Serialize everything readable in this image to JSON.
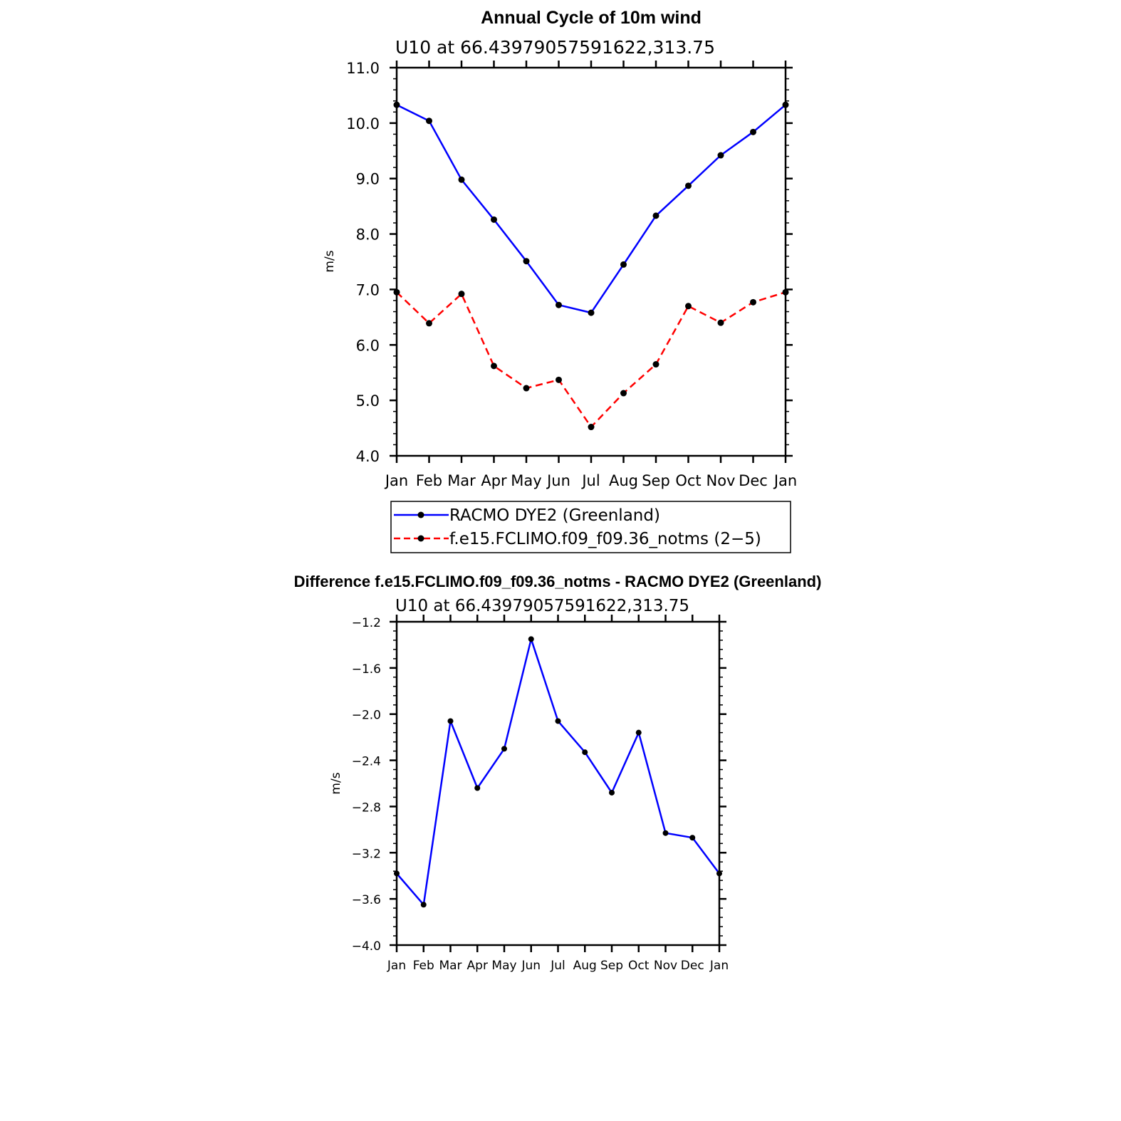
{
  "chart_data": [
    {
      "type": "line",
      "title": "Annual Cycle of 10m wind",
      "subtitle": "U10 at 66.43979057591622,313.75",
      "xlabel": "",
      "ylabel": "m/s",
      "categories": [
        "Jan",
        "Feb",
        "Mar",
        "Apr",
        "May",
        "Jun",
        "Jul",
        "Aug",
        "Sep",
        "Oct",
        "Nov",
        "Dec",
        "Jan"
      ],
      "ylim": [
        4.0,
        11.0
      ],
      "yticks": [
        4.0,
        5.0,
        6.0,
        7.0,
        8.0,
        9.0,
        10.0,
        11.0
      ],
      "ytick_labels": [
        "4.0",
        "5.0",
        "6.0",
        "7.0",
        "8.0",
        "9.0",
        "10.0",
        "11.0"
      ],
      "series": [
        {
          "name": "RACMO DYE2 (Greenland)",
          "color": "#0000ff",
          "dash": "solid",
          "values": [
            10.33,
            10.04,
            8.98,
            8.26,
            7.51,
            6.72,
            6.58,
            7.45,
            8.33,
            8.87,
            9.42,
            9.84,
            10.33
          ]
        },
        {
          "name": "f.e15.FCLIMO.f09_f09.36_notms (2−5)",
          "color": "#ff0000",
          "dash": "dashed",
          "values": [
            6.95,
            6.39,
            6.92,
            5.62,
            5.22,
            5.37,
            4.52,
            5.13,
            5.65,
            6.7,
            6.4,
            6.77,
            6.95
          ]
        }
      ],
      "legend": {
        "position": "bottom",
        "entries": [
          "RACMO DYE2 (Greenland)",
          "f.e15.FCLIMO.f09_f09.36_notms (2−5)"
        ]
      }
    },
    {
      "type": "line",
      "title": "Difference f.e15.FCLIMO.f09_f09.36_notms - RACMO DYE2 (Greenland)",
      "subtitle": "U10 at 66.43979057591622,313.75",
      "xlabel": "",
      "ylabel": "m/s",
      "categories": [
        "Jan",
        "Feb",
        "Mar",
        "Apr",
        "May",
        "Jun",
        "Jul",
        "Aug",
        "Sep",
        "Oct",
        "Nov",
        "Dec",
        "Jan"
      ],
      "ylim": [
        -4.0,
        -1.2
      ],
      "yticks": [
        -4.0,
        -3.6,
        -3.2,
        -2.8,
        -2.4,
        -2.0,
        -1.6,
        -1.2
      ],
      "ytick_labels": [
        "−4.0",
        "−3.6",
        "−3.2",
        "−2.8",
        "−2.4",
        "−2.0",
        "−1.6",
        "−1.2"
      ],
      "series": [
        {
          "name": "Difference",
          "color": "#0000ff",
          "dash": "solid",
          "values": [
            -3.38,
            -3.65,
            -2.06,
            -2.64,
            -2.3,
            -1.35,
            -2.06,
            -2.33,
            -2.68,
            -2.16,
            -3.03,
            -3.07,
            -3.38
          ]
        }
      ]
    }
  ]
}
